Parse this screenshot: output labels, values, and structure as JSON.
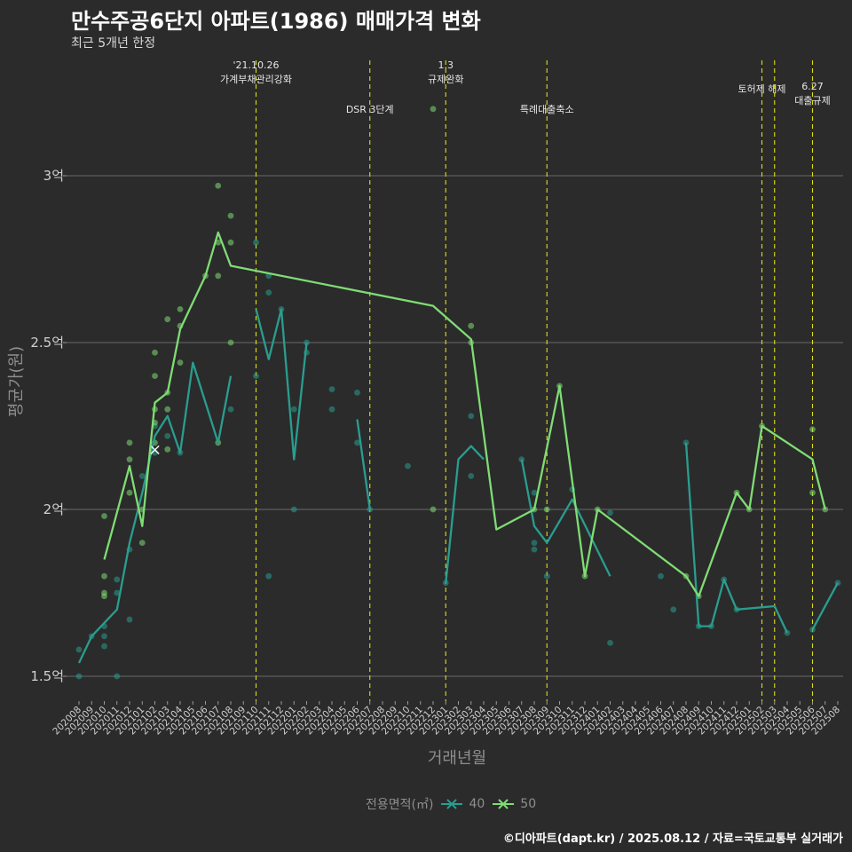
{
  "header": {
    "title": "만수주공6단지 아파트(1986) 매매가격 변화",
    "subtitle": "최근 5개년 한정"
  },
  "caption": "©디아파트(dapt.kr) / 2025.08.12 / 자료=국토교통부 실거래가",
  "legend": {
    "title": "전용면적(㎡)",
    "items": [
      {
        "label": "40",
        "color": "#2a9d8f"
      },
      {
        "label": "50",
        "color": "#7fdc74"
      }
    ]
  },
  "chart_data": {
    "type": "line",
    "xlabel": "거래년월",
    "ylabel": "평균가(원)",
    "ylim": [
      1.42,
      3.35
    ],
    "yticks": [
      {
        "value": 1.5,
        "label": "1.5억"
      },
      {
        "value": 2.0,
        "label": "2억"
      },
      {
        "value": 2.5,
        "label": "2.5억"
      },
      {
        "value": 3.0,
        "label": "3억"
      }
    ],
    "xticks": [
      "202008",
      "202009",
      "202010",
      "202011",
      "202012",
      "202101",
      "202102",
      "202103",
      "202104",
      "202105",
      "202106",
      "202107",
      "202108",
      "202109",
      "202110",
      "202111",
      "202112",
      "202201",
      "202202",
      "202203",
      "202204",
      "202205",
      "202206",
      "202207",
      "202208",
      "202209",
      "202210",
      "202211",
      "202212",
      "202301",
      "202302",
      "202303",
      "202304",
      "202305",
      "202306",
      "202307",
      "202308",
      "202309",
      "202310",
      "202311",
      "202312",
      "202401",
      "202402",
      "202403",
      "202404",
      "202405",
      "202406",
      "202407",
      "202408",
      "202409",
      "202410",
      "202411",
      "202412",
      "202501",
      "202502",
      "202503",
      "202504",
      "202505",
      "202506",
      "202507",
      "202508"
    ],
    "series": [
      {
        "name": "40",
        "color": "#2a9d8f",
        "segments": [
          [
            [
              0,
              1.54
            ],
            [
              1,
              1.62
            ],
            [
              3,
              1.7
            ],
            [
              4,
              1.9
            ],
            [
              5,
              2.05
            ],
            [
              6,
              2.22
            ],
            [
              7,
              2.28
            ],
            [
              8,
              2.17
            ],
            [
              9,
              2.44
            ],
            [
              11,
              2.2
            ],
            [
              12,
              2.4
            ]
          ],
          [
            [
              14,
              2.6
            ],
            [
              15,
              2.45
            ],
            [
              16,
              2.6
            ],
            [
              17,
              2.15
            ],
            [
              18,
              2.5
            ]
          ],
          [
            [
              22,
              2.27
            ],
            [
              23,
              2.0
            ]
          ],
          [
            [
              29,
              1.78
            ],
            [
              30,
              2.15
            ],
            [
              31,
              2.19
            ],
            [
              32,
              2.15
            ]
          ],
          [
            [
              35,
              2.15
            ],
            [
              36,
              1.95
            ],
            [
              37,
              1.9
            ],
            [
              39,
              2.03
            ],
            [
              42,
              1.8
            ]
          ],
          [
            [
              48,
              2.2
            ],
            [
              49,
              1.65
            ],
            [
              50,
              1.65
            ],
            [
              51,
              1.79
            ],
            [
              52,
              1.7
            ],
            [
              55,
              1.71
            ],
            [
              56,
              1.63
            ]
          ],
          [
            [
              58,
              1.64
            ],
            [
              60,
              1.78
            ]
          ]
        ],
        "points": [
          [
            0,
            1.58
          ],
          [
            0,
            1.5
          ],
          [
            1,
            1.62
          ],
          [
            2,
            1.65
          ],
          [
            2,
            1.62
          ],
          [
            2,
            1.59
          ],
          [
            3,
            1.75
          ],
          [
            3,
            1.79
          ],
          [
            3,
            1.5
          ],
          [
            4,
            1.88
          ],
          [
            4,
            1.67
          ],
          [
            5,
            2.1
          ],
          [
            6,
            2.17
          ],
          [
            6,
            2.25
          ],
          [
            7,
            2.22
          ],
          [
            8,
            2.17
          ],
          [
            12,
            2.3
          ],
          [
            14,
            2.8
          ],
          [
            14,
            2.4
          ],
          [
            15,
            2.65
          ],
          [
            15,
            2.7
          ],
          [
            15,
            1.8
          ],
          [
            16,
            2.6
          ],
          [
            17,
            2.3
          ],
          [
            17,
            2.0
          ],
          [
            18,
            2.47
          ],
          [
            18,
            2.5
          ],
          [
            20,
            2.3
          ],
          [
            20,
            2.36
          ],
          [
            22,
            2.35
          ],
          [
            22,
            2.2
          ],
          [
            23,
            2.0
          ],
          [
            26,
            2.13
          ],
          [
            29,
            1.78
          ],
          [
            31,
            2.28
          ],
          [
            31,
            2.1
          ],
          [
            35,
            2.15
          ],
          [
            36,
            1.9
          ],
          [
            36,
            1.88
          ],
          [
            36,
            2.05
          ],
          [
            37,
            1.8
          ],
          [
            39,
            2.06
          ],
          [
            42,
            1.6
          ],
          [
            42,
            1.99
          ],
          [
            46,
            1.8
          ],
          [
            47,
            1.7
          ],
          [
            48,
            2.2
          ],
          [
            49,
            1.65
          ],
          [
            50,
            1.65
          ],
          [
            51,
            1.79
          ],
          [
            52,
            1.7
          ],
          [
            56,
            1.63
          ],
          [
            58,
            1.64
          ],
          [
            60,
            1.78
          ]
        ],
        "marker": {
          "x": 6,
          "y": 2.18,
          "label": "×"
        }
      },
      {
        "name": "50",
        "color": "#7fdc74",
        "segments": [
          [
            [
              2,
              1.85
            ],
            [
              4,
              2.13
            ],
            [
              5,
              1.95
            ],
            [
              6,
              2.32
            ],
            [
              7,
              2.35
            ],
            [
              8,
              2.54
            ],
            [
              10,
              2.7
            ],
            [
              11,
              2.83
            ],
            [
              12,
              2.73
            ],
            [
              28,
              2.61
            ],
            [
              31,
              2.51
            ],
            [
              33,
              1.94
            ],
            [
              36,
              2.0
            ],
            [
              38,
              2.37
            ],
            [
              40,
              1.8
            ],
            [
              41,
              2.0
            ],
            [
              48,
              1.8
            ],
            [
              49,
              1.74
            ],
            [
              52,
              2.05
            ],
            [
              53,
              2.0
            ],
            [
              54,
              2.25
            ],
            [
              58,
              2.15
            ],
            [
              59,
              2.0
            ]
          ]
        ],
        "points": [
          [
            2,
            1.98
          ],
          [
            2,
            1.8
          ],
          [
            2,
            1.75
          ],
          [
            2,
            1.74
          ],
          [
            4,
            2.2
          ],
          [
            4,
            2.15
          ],
          [
            4,
            2.05
          ],
          [
            5,
            1.9
          ],
          [
            5,
            2.0
          ],
          [
            6,
            2.47
          ],
          [
            6,
            2.4
          ],
          [
            6,
            2.3
          ],
          [
            6,
            2.26
          ],
          [
            6,
            2.2
          ],
          [
            7,
            2.57
          ],
          [
            7,
            2.35
          ],
          [
            7,
            2.3
          ],
          [
            7,
            2.18
          ],
          [
            8,
            2.6
          ],
          [
            8,
            2.55
          ],
          [
            8,
            2.44
          ],
          [
            10,
            2.7
          ],
          [
            11,
            2.97
          ],
          [
            11,
            2.8
          ],
          [
            11,
            2.7
          ],
          [
            11,
            2.2
          ],
          [
            12,
            2.88
          ],
          [
            12,
            2.8
          ],
          [
            12,
            2.5
          ],
          [
            28,
            3.2
          ],
          [
            28,
            2.0
          ],
          [
            31,
            2.55
          ],
          [
            31,
            2.5
          ],
          [
            36,
            2.0
          ],
          [
            37,
            2.0
          ],
          [
            38,
            2.37
          ],
          [
            40,
            1.8
          ],
          [
            41,
            2.0
          ],
          [
            48,
            1.8
          ],
          [
            49,
            1.74
          ],
          [
            52,
            2.05
          ],
          [
            53,
            2.0
          ],
          [
            54,
            2.25
          ],
          [
            58,
            2.24
          ],
          [
            58,
            2.05
          ],
          [
            59,
            2.0
          ]
        ]
      }
    ],
    "events": [
      {
        "x": 14,
        "lines": [
          "'21.10.26",
          "가계부채관리강화"
        ],
        "row": 0
      },
      {
        "x": 23,
        "lines": [
          "DSR 3단계"
        ],
        "row": 2
      },
      {
        "x": 29,
        "lines": [
          "1.3",
          "규제완화"
        ],
        "row": 0
      },
      {
        "x": 37,
        "lines": [
          "특례대출축소"
        ],
        "row": 2
      },
      {
        "x": 54,
        "lines": [
          "토허제 해제"
        ],
        "row": 1
      },
      {
        "x": 55,
        "lines": [],
        "row": 1
      },
      {
        "x": 58,
        "lines": [
          "6.27",
          "대출규제"
        ],
        "row": 3
      }
    ]
  }
}
